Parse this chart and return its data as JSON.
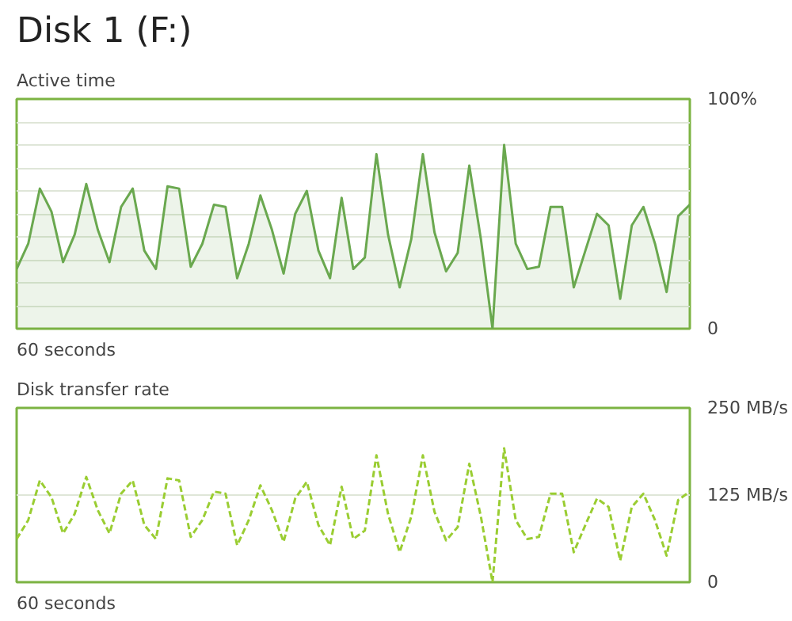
{
  "chart_data": [
    {
      "type": "area",
      "title": "Disk 1 (F:)",
      "subtitle": "Active time",
      "annotations": [
        "60 seconds"
      ],
      "categories": [
        null,
        null,
        null,
        null,
        null,
        null,
        null,
        null,
        null,
        null,
        null,
        null,
        null,
        null,
        null,
        null,
        null,
        null,
        null,
        null,
        null,
        null,
        null,
        null,
        null,
        null,
        null,
        null,
        null,
        null,
        null,
        null,
        null,
        null,
        null,
        null,
        null,
        null,
        null,
        null,
        null,
        null,
        null,
        null,
        null,
        null,
        null,
        null,
        null,
        null,
        null,
        null,
        null,
        null,
        null,
        null,
        null,
        null,
        null
      ],
      "series": [
        {
          "color": "#6aa84f",
          "values": [
            26,
            37,
            61,
            51,
            29,
            41,
            63,
            43,
            29,
            53,
            61,
            34,
            26,
            62,
            61,
            27,
            37,
            54,
            53,
            22,
            37,
            58,
            43,
            24,
            50,
            60,
            34,
            22,
            57,
            26,
            31,
            76,
            41,
            18,
            39,
            76,
            42,
            25,
            33,
            71,
            39,
            0,
            80,
            37,
            26,
            27,
            53,
            53,
            18,
            34,
            50,
            45,
            13,
            45,
            53,
            37,
            16,
            49,
            54
          ]
        }
      ],
      "ylim": [
        0,
        100
      ],
      "yticks": [
        {
          "value": 0,
          "label": "0"
        },
        {
          "value": 10,
          "label": null
        },
        {
          "value": 20,
          "label": null
        },
        {
          "value": 30,
          "label": null
        },
        {
          "value": 40,
          "label": null
        },
        {
          "value": 50,
          "label": null
        },
        {
          "value": 60,
          "label": null
        },
        {
          "value": 70,
          "label": null
        },
        {
          "value": 80,
          "label": null
        },
        {
          "value": 90,
          "label": null
        },
        {
          "value": 100,
          "label": "100%"
        }
      ],
      "grid": "y",
      "line_style": "solid"
    },
    {
      "type": "line",
      "title": "Disk transfer rate",
      "annotations": [
        "60 seconds"
      ],
      "categories": [
        null,
        null,
        null,
        null,
        null,
        null,
        null,
        null,
        null,
        null,
        null,
        null,
        null,
        null,
        null,
        null,
        null,
        null,
        null,
        null,
        null,
        null,
        null,
        null,
        null,
        null,
        null,
        null,
        null,
        null,
        null,
        null,
        null,
        null,
        null,
        null,
        null,
        null,
        null,
        null,
        null,
        null,
        null,
        null,
        null,
        null,
        null,
        null,
        null,
        null,
        null,
        null,
        null,
        null,
        null,
        null,
        null,
        null,
        null
      ],
      "series": [
        {
          "color": "#9acd32",
          "values": [
            62,
            89,
            146,
            122,
            70,
            98,
            151,
            103,
            70,
            127,
            146,
            82,
            62,
            149,
            146,
            65,
            89,
            130,
            127,
            53,
            89,
            139,
            103,
            58,
            120,
            144,
            82,
            53,
            137,
            62,
            74,
            182,
            98,
            43,
            94,
            182,
            101,
            60,
            79,
            170,
            94,
            0,
            192,
            89,
            62,
            65,
            127,
            127,
            43,
            82,
            120,
            108,
            31,
            108,
            127,
            89,
            38,
            118,
            130
          ]
        }
      ],
      "ylim": [
        0,
        250
      ],
      "yticks": [
        {
          "value": 0,
          "label": "0"
        },
        {
          "value": 125,
          "label": "125 MB/s"
        },
        {
          "value": 250,
          "label": "250 MB/s"
        }
      ],
      "grid": "y",
      "line_style": "dashed"
    }
  ]
}
